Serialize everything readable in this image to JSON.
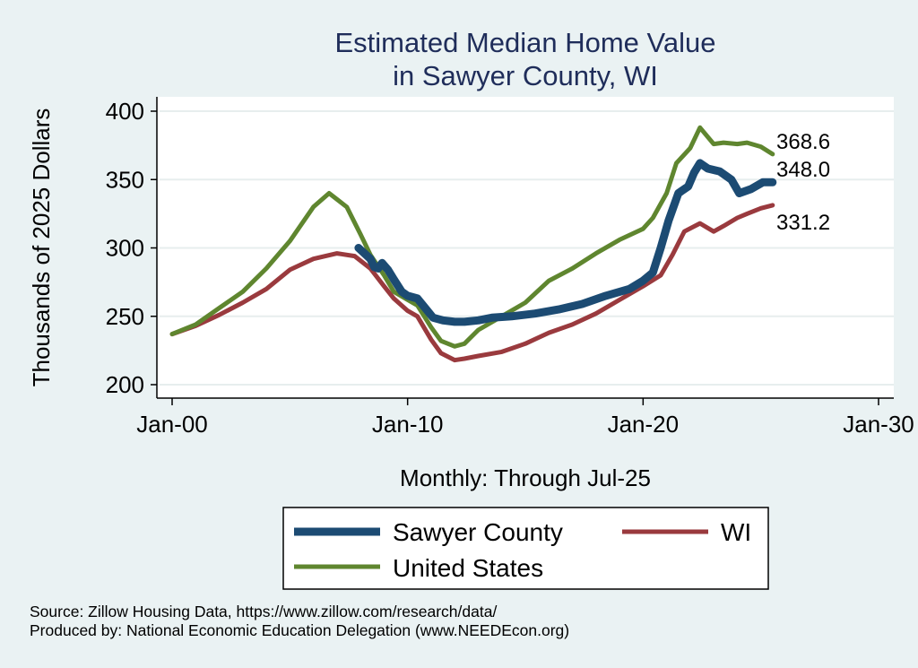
{
  "chart_data": {
    "type": "line",
    "title": [
      "Estimated Median Home Value",
      "in Sawyer County, WI"
    ],
    "ylabel": "Thousands of 2025 Dollars",
    "xlabel": "Monthly: Through Jul-25",
    "ylim": [
      200,
      400
    ],
    "yticks": [
      200,
      250,
      300,
      350,
      400
    ],
    "xlim": [
      "2000-01",
      "2030-01"
    ],
    "xticks": [
      {
        "date": "2000-01",
        "label": "Jan-00"
      },
      {
        "date": "2010-01",
        "label": "Jan-10"
      },
      {
        "date": "2020-01",
        "label": "Jan-20"
      },
      {
        "date": "2030-01",
        "label": "Jan-30"
      }
    ],
    "grid": true,
    "legend": {
      "position": "bottom"
    },
    "series": [
      {
        "name": "Sawyer County",
        "color": "#1c4b73",
        "end_label": "348.0",
        "points": [
          [
            "2007-12",
            300
          ],
          [
            "2008-03",
            296
          ],
          [
            "2008-06",
            292
          ],
          [
            "2008-08",
            286
          ],
          [
            "2008-10",
            285
          ],
          [
            "2008-12",
            289
          ],
          [
            "2009-03",
            284
          ],
          [
            "2009-06",
            277
          ],
          [
            "2009-10",
            268
          ],
          [
            "2010-01",
            265
          ],
          [
            "2010-06",
            263
          ],
          [
            "2010-10",
            256
          ],
          [
            "2011-02",
            249
          ],
          [
            "2011-07",
            247
          ],
          [
            "2012-01",
            246
          ],
          [
            "2012-06",
            246
          ],
          [
            "2013-01",
            247
          ],
          [
            "2013-08",
            249
          ],
          [
            "2014-06",
            250
          ],
          [
            "2015-06",
            252
          ],
          [
            "2016-06",
            255
          ],
          [
            "2017-06",
            259
          ],
          [
            "2018-06",
            265
          ],
          [
            "2019-06",
            270
          ],
          [
            "2020-01",
            276
          ],
          [
            "2020-06",
            282
          ],
          [
            "2020-10",
            300
          ],
          [
            "2021-02",
            320
          ],
          [
            "2021-07",
            340
          ],
          [
            "2021-12",
            345
          ],
          [
            "2022-03",
            355
          ],
          [
            "2022-06",
            362
          ],
          [
            "2022-10",
            358
          ],
          [
            "2023-04",
            356
          ],
          [
            "2023-10",
            350
          ],
          [
            "2024-02",
            340
          ],
          [
            "2024-08",
            343
          ],
          [
            "2025-02",
            348
          ],
          [
            "2025-07",
            348
          ]
        ]
      },
      {
        "name": "WI",
        "color": "#9a3a3e",
        "end_label": "331.2",
        "points": [
          [
            "2000-01",
            237
          ],
          [
            "2001-01",
            243
          ],
          [
            "2002-01",
            251
          ],
          [
            "2003-01",
            260
          ],
          [
            "2004-01",
            270
          ],
          [
            "2005-01",
            284
          ],
          [
            "2006-01",
            292
          ],
          [
            "2007-01",
            296
          ],
          [
            "2007-10",
            294
          ],
          [
            "2008-06",
            285
          ],
          [
            "2009-01",
            272
          ],
          [
            "2009-06",
            263
          ],
          [
            "2010-01",
            254
          ],
          [
            "2010-06",
            250
          ],
          [
            "2011-01",
            233
          ],
          [
            "2011-06",
            223
          ],
          [
            "2012-01",
            218
          ],
          [
            "2012-06",
            219
          ],
          [
            "2013-01",
            221
          ],
          [
            "2014-01",
            224
          ],
          [
            "2015-01",
            230
          ],
          [
            "2016-01",
            238
          ],
          [
            "2017-01",
            244
          ],
          [
            "2018-01",
            252
          ],
          [
            "2019-01",
            262
          ],
          [
            "2020-01",
            272
          ],
          [
            "2020-10",
            280
          ],
          [
            "2021-04",
            295
          ],
          [
            "2021-10",
            312
          ],
          [
            "2022-06",
            318
          ],
          [
            "2023-01",
            312
          ],
          [
            "2023-06",
            316
          ],
          [
            "2024-01",
            322
          ],
          [
            "2024-06",
            325
          ],
          [
            "2025-01",
            329
          ],
          [
            "2025-07",
            331.2
          ]
        ]
      },
      {
        "name": "United States",
        "color": "#5f862f",
        "end_label": "368.6",
        "points": [
          [
            "2000-01",
            237
          ],
          [
            "2001-01",
            244
          ],
          [
            "2002-01",
            256
          ],
          [
            "2003-01",
            268
          ],
          [
            "2004-01",
            285
          ],
          [
            "2005-01",
            305
          ],
          [
            "2006-01",
            330
          ],
          [
            "2006-09",
            340
          ],
          [
            "2007-06",
            330
          ],
          [
            "2008-01",
            310
          ],
          [
            "2008-06",
            295
          ],
          [
            "2009-01",
            280
          ],
          [
            "2009-06",
            268
          ],
          [
            "2010-01",
            262
          ],
          [
            "2010-06",
            258
          ],
          [
            "2011-01",
            242
          ],
          [
            "2011-06",
            232
          ],
          [
            "2012-01",
            228
          ],
          [
            "2012-06",
            230
          ],
          [
            "2013-01",
            240
          ],
          [
            "2014-01",
            250
          ],
          [
            "2015-01",
            260
          ],
          [
            "2016-01",
            276
          ],
          [
            "2017-01",
            285
          ],
          [
            "2018-01",
            296
          ],
          [
            "2019-01",
            306
          ],
          [
            "2020-01",
            314
          ],
          [
            "2020-06",
            322
          ],
          [
            "2021-01",
            340
          ],
          [
            "2021-06",
            362
          ],
          [
            "2022-01",
            373
          ],
          [
            "2022-06",
            388
          ],
          [
            "2023-01",
            376
          ],
          [
            "2023-06",
            377
          ],
          [
            "2024-01",
            376
          ],
          [
            "2024-06",
            377
          ],
          [
            "2025-01",
            374
          ],
          [
            "2025-07",
            368.6
          ]
        ]
      }
    ]
  },
  "footer": {
    "source": "Source: Zillow Housing Data, https://www.zillow.com/research/data/",
    "produced": "Produced by: National Economic Education Delegation (www.NEEDEcon.org)"
  }
}
